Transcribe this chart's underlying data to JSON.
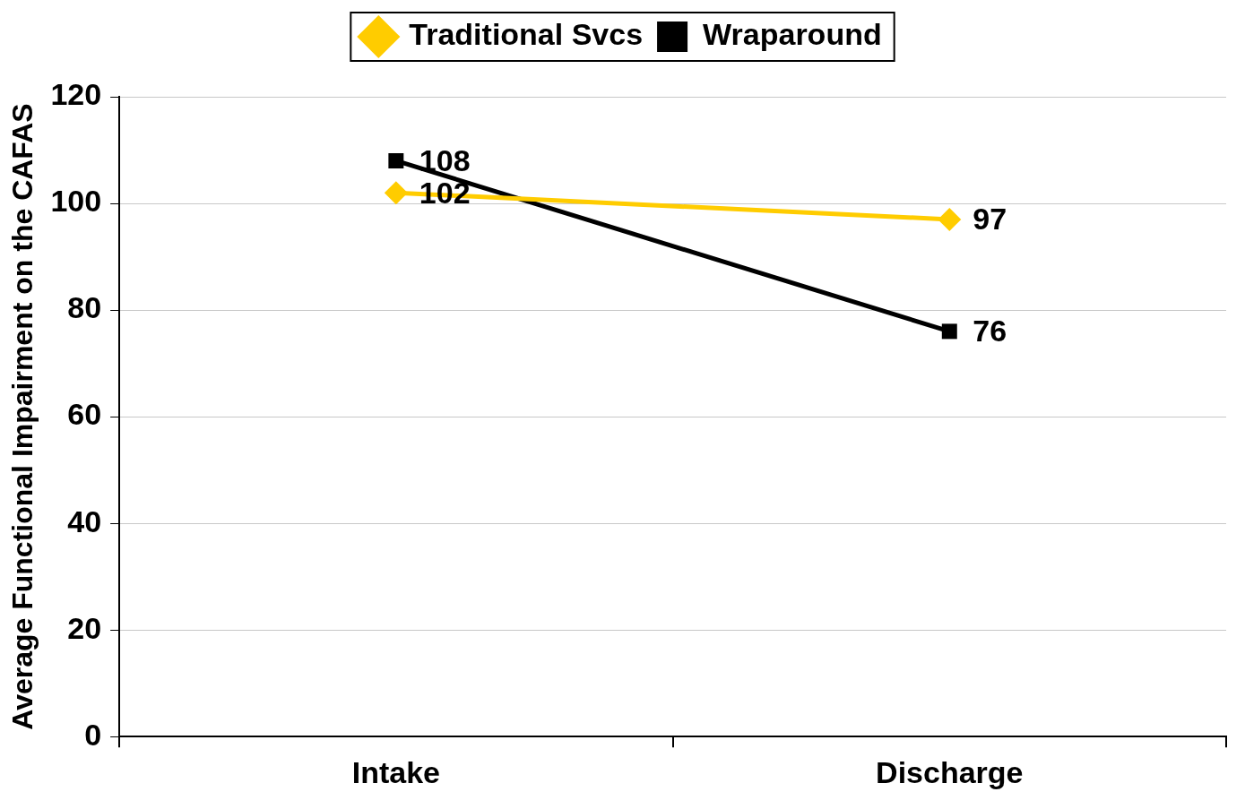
{
  "chart_data": {
    "type": "line",
    "categories": [
      "Intake",
      "Discharge"
    ],
    "series": [
      {
        "name": "Traditional Svcs",
        "color": "#ffcc00",
        "values": [
          102,
          97
        ],
        "marker": "diamond"
      },
      {
        "name": "Wraparound",
        "color": "#000000",
        "values": [
          108,
          76
        ],
        "marker": "square"
      }
    ],
    "ylabel": "Average Functional Impairment on the CAFAS",
    "ylim": [
      0,
      120
    ],
    "yticks": [
      0,
      20,
      40,
      60,
      80,
      100,
      120
    ],
    "grid": "y",
    "legend": "top",
    "data_labels": true
  }
}
